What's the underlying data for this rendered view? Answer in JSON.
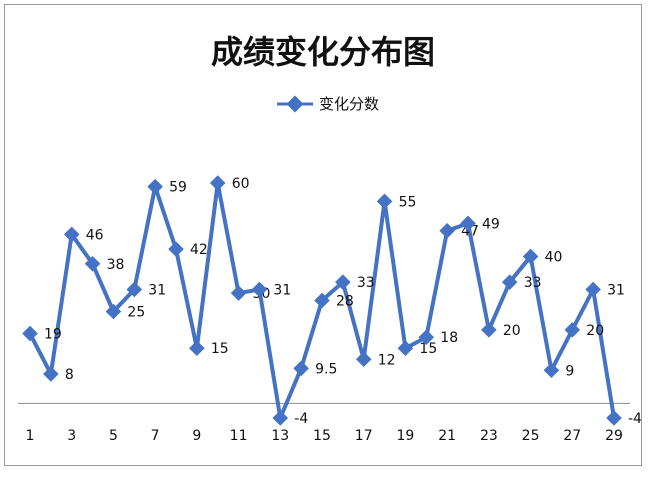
{
  "chart_data": {
    "type": "line",
    "title": "成绩变化分布图",
    "legend": {
      "position": "top-center"
    },
    "series": [
      {
        "name": "变化分数",
        "color": "#4472c4",
        "x": [
          1,
          2,
          3,
          4,
          5,
          6,
          7,
          8,
          9,
          10,
          11,
          12,
          13,
          14,
          15,
          16,
          17,
          18,
          19,
          20,
          21,
          22,
          23,
          24,
          25,
          26,
          27,
          28,
          29
        ],
        "values": [
          19,
          8,
          46,
          38,
          25,
          31,
          59,
          42,
          15,
          60,
          30,
          31,
          -4,
          9.5,
          28,
          33,
          12,
          55,
          15,
          18,
          47,
          49,
          20,
          33,
          40,
          9,
          20,
          31,
          -4
        ]
      }
    ],
    "x_tick_labels": [
      "1",
      "3",
      "5",
      "7",
      "9",
      "11",
      "13",
      "15",
      "17",
      "19",
      "21",
      "23",
      "25",
      "27",
      "29"
    ],
    "xlabel": "",
    "ylabel": "",
    "y_axis_visible": false,
    "grid": false,
    "ylim": [
      -10,
      70
    ]
  }
}
